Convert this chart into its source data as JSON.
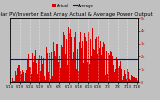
{
  "title": "Solar PV/Inverter East Array Actual & Average Power Output",
  "title_fontsize": 3.8,
  "bg_color": "#c0c0c0",
  "plot_bg_color": "#c0c0c0",
  "bar_color": "#dd0000",
  "avg_line_color": "#0000ff",
  "grid_color": "#ffffff",
  "ylabel_right_color": "#cc0000",
  "ylim": [
    0,
    1.0
  ],
  "n_bars": 144,
  "legend_actual_color": "#dd0000",
  "legend_avg_color": "#0000ff",
  "x_tick_labels": [
    "5/14",
    "5/19",
    "5/24",
    "5/29",
    "6/3",
    "6/8",
    "6/13",
    "6/18",
    "6/23",
    "6/28",
    "7/3",
    "7/8",
    "7/13",
    "7/18"
  ],
  "y_tick_labels_right": [
    "0",
    "1k",
    "2k",
    "3k",
    "4k",
    "5k"
  ],
  "avg_line_y": 0.36,
  "bar_heights": [
    0.02,
    0.04,
    0.06,
    0.08,
    0.1,
    0.14,
    0.18,
    0.2,
    0.22,
    0.25,
    0.28,
    0.3,
    0.25,
    0.22,
    0.3,
    0.35,
    0.28,
    0.2,
    0.32,
    0.38,
    0.42,
    0.45,
    0.38,
    0.3,
    0.45,
    0.5,
    0.42,
    0.35,
    0.48,
    0.55,
    0.5,
    0.4,
    0.52,
    0.58,
    0.52,
    0.45,
    0.38,
    0.42,
    0.48,
    0.55,
    0.5,
    0.6,
    0.55,
    0.45,
    0.62,
    0.68,
    0.6,
    0.52,
    0.65,
    0.72,
    0.68,
    0.58,
    0.72,
    0.78,
    0.7,
    0.62,
    0.75,
    0.82,
    0.76,
    0.65,
    0.8,
    0.88,
    0.82,
    0.72,
    0.85,
    0.92,
    0.88,
    0.78,
    0.9,
    0.95,
    0.92,
    0.82,
    0.88,
    0.96,
    0.9,
    0.8,
    0.92,
    0.98,
    0.95,
    0.85,
    0.9,
    0.82,
    0.88,
    0.75,
    0.85,
    0.92,
    0.88,
    0.78,
    0.82,
    0.88,
    0.8,
    0.7,
    0.78,
    0.85,
    0.8,
    0.68,
    0.75,
    0.82,
    0.76,
    0.65,
    0.72,
    0.78,
    0.7,
    0.6,
    0.68,
    0.72,
    0.65,
    0.55,
    0.62,
    0.68,
    0.6,
    0.5,
    0.55,
    0.6,
    0.52,
    0.42,
    0.48,
    0.52,
    0.45,
    0.35,
    0.42,
    0.45,
    0.38,
    0.28,
    0.35,
    0.38,
    0.3,
    0.22,
    0.28,
    0.3,
    0.22,
    0.18,
    0.22,
    0.25,
    0.18,
    0.12,
    0.15,
    0.18,
    0.12,
    0.08,
    0.1,
    0.12,
    0.06,
    0.04
  ]
}
